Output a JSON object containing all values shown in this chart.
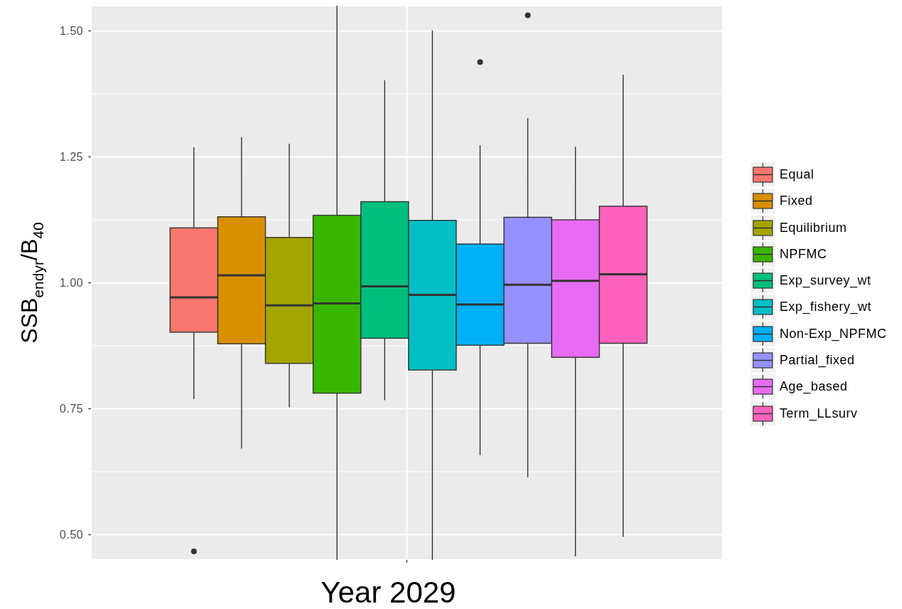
{
  "chart_data": {
    "type": "box",
    "xlabel": "Year 2029",
    "ylabel": "SSB$_{endyr}$/B$_{40}$",
    "categories": [
      null
    ],
    "series": [
      {
        "name": "Equal",
        "color": "#f8766d",
        "boxes": [
          {
            "low": 0.769,
            "q1": 0.902,
            "median": 0.971,
            "q3": 1.109,
            "high": 1.269,
            "outliers": [
              0.467
            ]
          }
        ]
      },
      {
        "name": "Fixed",
        "color": "#d89000",
        "boxes": [
          {
            "low": 0.671,
            "q1": 0.879,
            "median": 1.015,
            "q3": 1.131,
            "high": 1.289
          }
        ]
      },
      {
        "name": "Equilibrium",
        "color": "#a3a500",
        "boxes": [
          {
            "low": 0.753,
            "q1": 0.84,
            "median": 0.955,
            "q3": 1.09,
            "high": 1.276
          }
        ]
      },
      {
        "name": "NPFMC",
        "color": "#39b600",
        "boxes": [
          {
            "low": 0.45,
            "q1": 0.781,
            "median": 0.959,
            "q3": 1.134,
            "high": 1.55
          }
        ]
      },
      {
        "name": "Exp_survey_wt",
        "color": "#00bf7d",
        "boxes": [
          {
            "low": 0.767,
            "q1": 0.89,
            "median": 0.993,
            "q3": 1.161,
            "high": 1.402
          }
        ]
      },
      {
        "name": "Exp_fishery_wt",
        "color": "#00bfc4",
        "boxes": [
          {
            "low": 0.45,
            "q1": 0.827,
            "median": 0.976,
            "q3": 1.124,
            "high": 1.501
          }
        ]
      },
      {
        "name": "Non-Exp_NPFMC",
        "color": "#00b0f6",
        "boxes": [
          {
            "low": 0.658,
            "q1": 0.876,
            "median": 0.957,
            "q3": 1.077,
            "high": 1.273,
            "outliers": [
              1.438
            ]
          }
        ]
      },
      {
        "name": "Partial_fixed",
        "color": "#9590ff",
        "boxes": [
          {
            "low": 0.614,
            "q1": 0.88,
            "median": 0.996,
            "q3": 1.13,
            "high": 1.327,
            "outliers": [
              1.531
            ]
          }
        ]
      },
      {
        "name": "Age_based",
        "color": "#e76bf3",
        "boxes": [
          {
            "low": 0.457,
            "q1": 0.852,
            "median": 1.004,
            "q3": 1.125,
            "high": 1.27
          }
        ]
      },
      {
        "name": "Term_LLsurv",
        "color": "#ff62bc",
        "boxes": [
          {
            "low": 0.496,
            "q1": 0.88,
            "median": 1.017,
            "q3": 1.152,
            "high": 1.413
          }
        ]
      }
    ],
    "ylim": [
      0.45,
      1.55
    ],
    "yticks": [
      {
        "value": 0.5,
        "label": "0.50"
      },
      {
        "value": 0.75,
        "label": "0.75"
      },
      {
        "value": 1.0,
        "label": "1.00"
      },
      {
        "value": 1.25,
        "label": "1.25"
      },
      {
        "value": 1.5,
        "label": "1.50"
      }
    ],
    "grid": true,
    "legend": "right"
  }
}
